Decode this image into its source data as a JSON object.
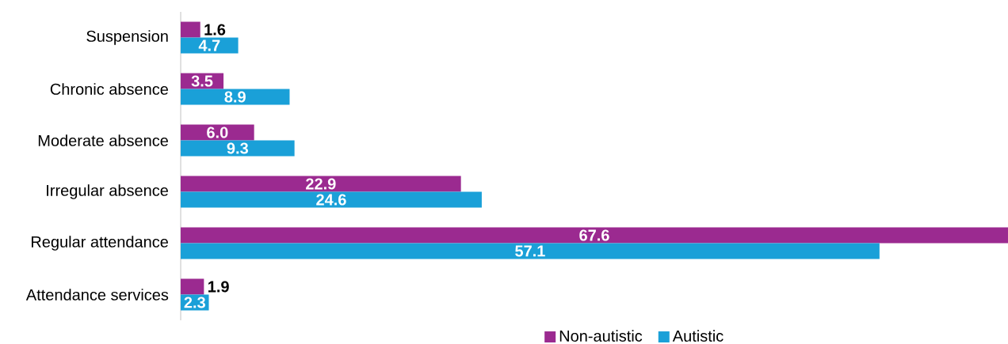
{
  "chart_data": {
    "type": "bar",
    "orientation": "horizontal",
    "categories": [
      "Suspension",
      "Chronic absence",
      "Moderate absence",
      "Irregular absence",
      "Regular attendance",
      "Attendance services"
    ],
    "series": [
      {
        "name": "Non-autistic",
        "color": "#9b2a90",
        "values": [
          1.6,
          3.5,
          6.0,
          22.9,
          67.6,
          1.9
        ],
        "value_labels": [
          "1.6",
          "3.5",
          "6.0",
          "22.9",
          "67.6",
          "1.9"
        ]
      },
      {
        "name": "Autistic",
        "color": "#1aa0d8",
        "values": [
          4.7,
          8.9,
          9.3,
          24.6,
          57.1,
          2.3
        ],
        "value_labels": [
          "4.7",
          "8.9",
          "9.3",
          "24.6",
          "57.1",
          "2.3"
        ]
      }
    ],
    "legend": "bottom"
  }
}
